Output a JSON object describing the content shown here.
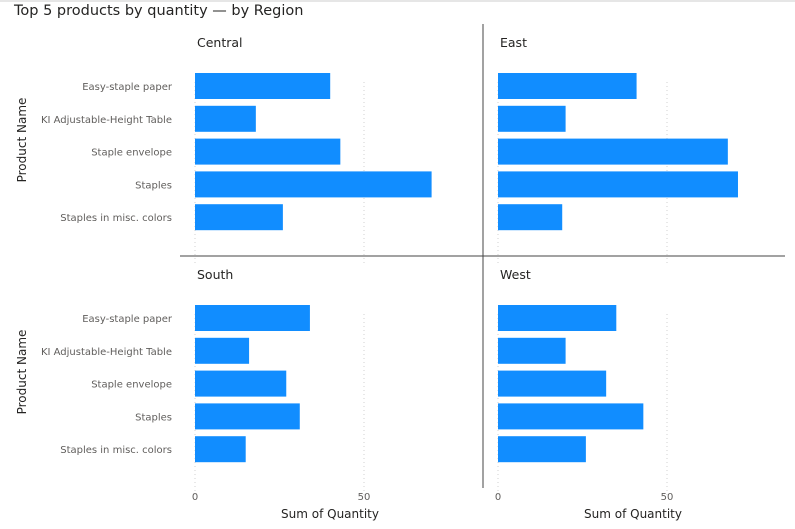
{
  "title": "Top 5 products by quantity — by Region",
  "chart_data": {
    "type": "bar",
    "orientation": "horizontal",
    "facet_by": "Region",
    "categories": [
      "Easy-staple paper",
      "KI Adjustable-Height Table",
      "Staple envelope",
      "Staples",
      "Staples in misc. colors"
    ],
    "xlabel": "Sum of Quantity",
    "ylabel": "Product Name",
    "xlim": [
      0,
      85
    ],
    "xticks": [
      0,
      50
    ],
    "grid": "vertical-dotted",
    "bar_color": "#118DFF",
    "panels": [
      {
        "name": "Central",
        "values": [
          40,
          18,
          43,
          70,
          26
        ]
      },
      {
        "name": "East",
        "values": [
          41,
          20,
          68,
          71,
          19
        ]
      },
      {
        "name": "South",
        "values": [
          34,
          16,
          27,
          31,
          15
        ]
      },
      {
        "name": "West",
        "values": [
          35,
          20,
          32,
          43,
          26
        ]
      }
    ]
  }
}
